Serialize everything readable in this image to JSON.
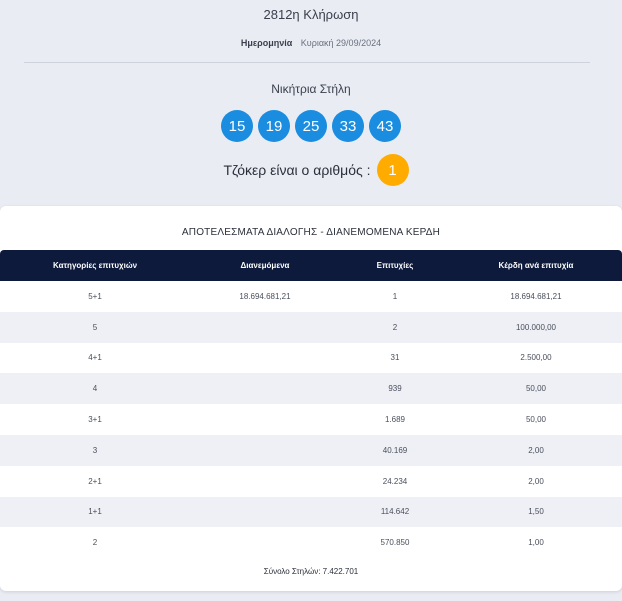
{
  "draw": {
    "title": "2812η Κλήρωση",
    "date_label": "Ημερομηνία",
    "date_value": "Κυριακή 29/09/2024"
  },
  "winning": {
    "title": "Νικήτρια Στήλη",
    "numbers": [
      "15",
      "19",
      "25",
      "33",
      "43"
    ],
    "joker_label": "Τζόκερ είναι ο αριθμός :",
    "joker": "1"
  },
  "colors": {
    "ball": "#1a8de0",
    "joker_ball": "#ffab00",
    "table_header": "#0d1a3b"
  },
  "results": {
    "title": "ΑΠΟΤΕΛΕΣΜΑΤΑ ΔΙΑΛΟΓΗΣ - ΔΙΑΝΕΜΟΜΕΝΑ ΚΕΡΔΗ",
    "headers": [
      "Κατηγορίες επιτυχιών",
      "Διανεμόμενα",
      "Επιτυχίες",
      "Κέρδη ανά επιτυχία"
    ],
    "rows": [
      [
        "5+1",
        "18.694.681,21",
        "1",
        "18.694.681,21"
      ],
      [
        "5",
        "",
        "2",
        "100.000,00"
      ],
      [
        "4+1",
        "",
        "31",
        "2.500,00"
      ],
      [
        "4",
        "",
        "939",
        "50,00"
      ],
      [
        "3+1",
        "",
        "1.689",
        "50,00"
      ],
      [
        "3",
        "",
        "40.169",
        "2,00"
      ],
      [
        "2+1",
        "",
        "24.234",
        "2,00"
      ],
      [
        "1+1",
        "",
        "114.642",
        "1,50"
      ],
      [
        "2",
        "",
        "570.850",
        "1,00"
      ]
    ],
    "total": "Σύνολο Στηλών: 7.422.701"
  }
}
